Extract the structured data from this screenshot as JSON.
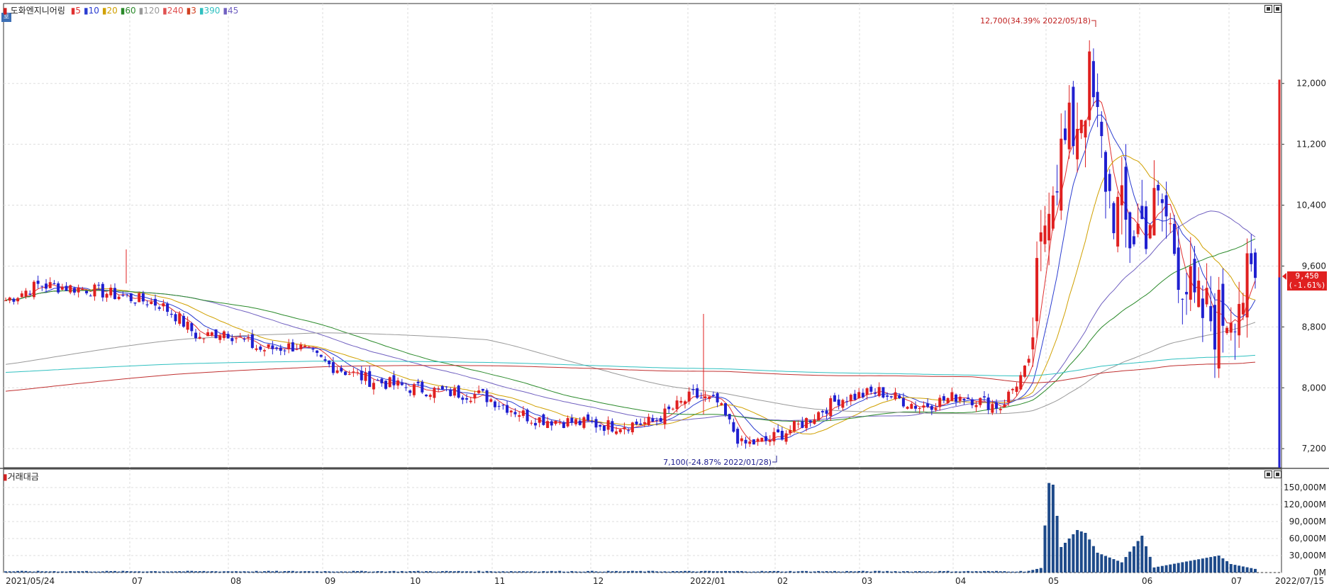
{
  "legend": {
    "stock_name": "도화엔지니어링",
    "ma_items": [
      {
        "label": "5",
        "color": "#e03030"
      },
      {
        "label": "10",
        "color": "#2a3cd0"
      },
      {
        "label": "20",
        "color": "#d0a000"
      },
      {
        "label": "60",
        "color": "#2a8a2a"
      },
      {
        "label": "120",
        "color": "#999999"
      },
      {
        "label": "240",
        "color": "#e05050"
      },
      {
        "label": "3",
        "color": "#d04020"
      },
      {
        "label": "390",
        "color": "#30c0c0"
      },
      {
        "label": "45",
        "color": "#7060c0"
      }
    ]
  },
  "volume_legend": "거래대금",
  "price_badge": "호",
  "current_price": {
    "value": "9,450",
    "change": "(-1.61%)"
  },
  "annotations": {
    "high": "12,700(34.39% 2022/05/18)",
    "low": "7,100(-24.87% 2022/01/28)"
  },
  "chart_data": {
    "type": "candlestick",
    "y_ticks": [
      "12,000",
      "11,200",
      "10,400",
      "9,600",
      "8,800",
      "8,000",
      "7,200"
    ],
    "y_tick_values": [
      12000,
      11200,
      10400,
      9600,
      8800,
      8000,
      7200
    ],
    "volume_ticks": [
      "150,000M",
      "120,000M",
      "90,000M",
      "60,000M",
      "30,000M",
      "0M"
    ],
    "volume_tick_values": [
      150000,
      120000,
      90000,
      60000,
      30000,
      0
    ],
    "x_labels": [
      "2021/05/24",
      "07",
      "08",
      "09",
      "10",
      "11",
      "12",
      "2022/01",
      "02",
      "03",
      "04",
      "05",
      "06",
      "07",
      "2022/07/15"
    ],
    "price_anchors": [
      [
        0,
        9150
      ],
      [
        8,
        9350
      ],
      [
        20,
        9300
      ],
      [
        38,
        9100
      ],
      [
        42,
        8950
      ],
      [
        48,
        8650
      ],
      [
        54,
        8750
      ],
      [
        63,
        8500
      ],
      [
        72,
        8550
      ],
      [
        80,
        8300
      ],
      [
        90,
        8100
      ],
      [
        100,
        8000
      ],
      [
        108,
        7950
      ],
      [
        118,
        7900
      ],
      [
        130,
        7600
      ],
      [
        140,
        7550
      ],
      [
        150,
        7500
      ],
      [
        160,
        7550
      ],
      [
        170,
        7900
      ],
      [
        176,
        7800
      ],
      [
        182,
        7250
      ],
      [
        188,
        7300
      ],
      [
        196,
        7500
      ],
      [
        206,
        7850
      ],
      [
        216,
        7950
      ],
      [
        226,
        7750
      ],
      [
        236,
        7900
      ],
      [
        246,
        7750
      ],
      [
        253,
        8300
      ],
      [
        258,
        10700
      ],
      [
        264,
        11400
      ],
      [
        268,
        12000
      ],
      [
        273,
        10500
      ],
      [
        278,
        10000
      ],
      [
        286,
        10400
      ],
      [
        294,
        9000
      ],
      [
        300,
        8900
      ],
      [
        305,
        9250
      ],
      [
        310,
        9350
      ]
    ],
    "volume_anchors": [
      [
        253,
        3000
      ],
      [
        256,
        8000
      ],
      [
        258,
        158000
      ],
      [
        259,
        155000
      ],
      [
        261,
        45000
      ],
      [
        265,
        75000
      ],
      [
        267,
        70000
      ],
      [
        270,
        35000
      ],
      [
        276,
        18000
      ],
      [
        281,
        65000
      ],
      [
        284,
        9000
      ],
      [
        300,
        30000
      ],
      [
        303,
        15000
      ]
    ],
    "bar_count": 310
  }
}
